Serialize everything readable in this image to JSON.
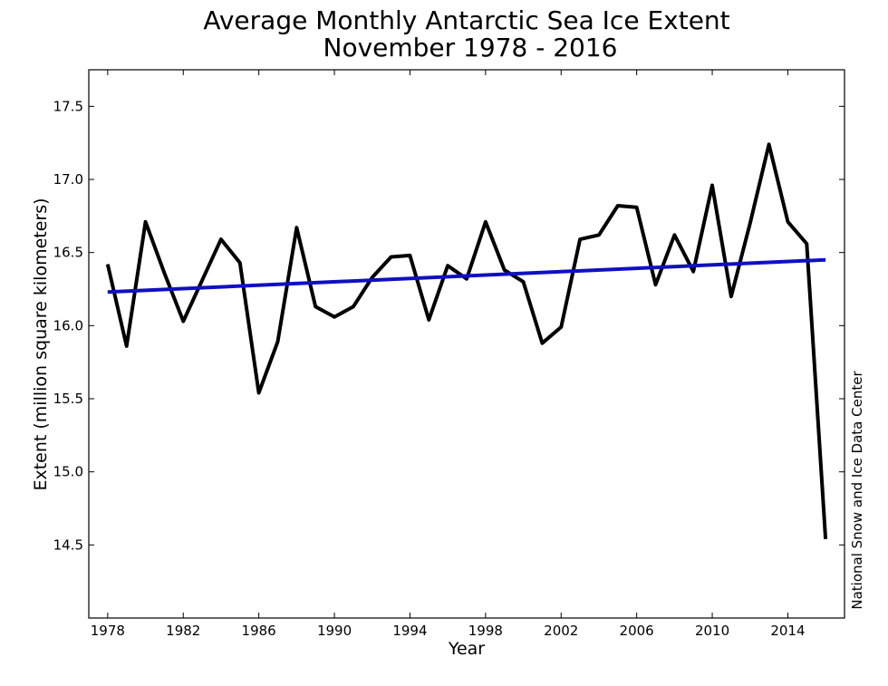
{
  "chart_data": {
    "type": "line",
    "title": "Average Monthly Antarctic Sea Ice Extent",
    "subtitle": "November 1978 - 2016",
    "xlabel": "Year",
    "ylabel": "Extent (million square kilometers)",
    "source": "National Snow and Ice Data Center",
    "xlim": [
      1977,
      2017
    ],
    "ylim": [
      14.0,
      17.75
    ],
    "x_ticks": [
      1978,
      1982,
      1986,
      1990,
      1994,
      1998,
      2002,
      2006,
      2010,
      2014
    ],
    "y_ticks": [
      14.5,
      15.0,
      15.5,
      16.0,
      16.5,
      17.0,
      17.5
    ],
    "x_tick_labels": [
      "1978",
      "1982",
      "1986",
      "1990",
      "1994",
      "1998",
      "2002",
      "2006",
      "2010",
      "2014"
    ],
    "y_tick_labels": [
      "14.5",
      "15.0",
      "15.5",
      "16.0",
      "16.5",
      "17.0",
      "17.5"
    ],
    "grid": false,
    "series": [
      {
        "color": "#000000",
        "x": [
          1978,
          1979,
          1980,
          1981,
          1982,
          1983,
          1984,
          1985,
          1986,
          1987,
          1988,
          1989,
          1990,
          1991,
          1992,
          1993,
          1994,
          1995,
          1996,
          1997,
          1998,
          1999,
          2000,
          2001,
          2002,
          2003,
          2004,
          2005,
          2006,
          2007,
          2008,
          2009,
          2010,
          2011,
          2012,
          2013,
          2014,
          2015,
          2016
        ],
        "y": [
          16.42,
          15.86,
          16.71,
          16.36,
          16.03,
          16.31,
          16.59,
          16.43,
          15.54,
          15.89,
          16.67,
          16.13,
          16.06,
          16.13,
          16.33,
          16.47,
          16.48,
          16.04,
          16.41,
          16.32,
          16.71,
          16.38,
          16.3,
          15.88,
          15.99,
          16.59,
          16.62,
          16.82,
          16.81,
          16.28,
          16.62,
          16.37,
          16.96,
          16.2,
          16.7,
          17.24,
          16.71,
          16.56,
          14.54
        ]
      },
      {
        "color": "#1010c0",
        "x": [
          1978,
          2016
        ],
        "y": [
          16.23,
          16.45
        ]
      }
    ]
  }
}
